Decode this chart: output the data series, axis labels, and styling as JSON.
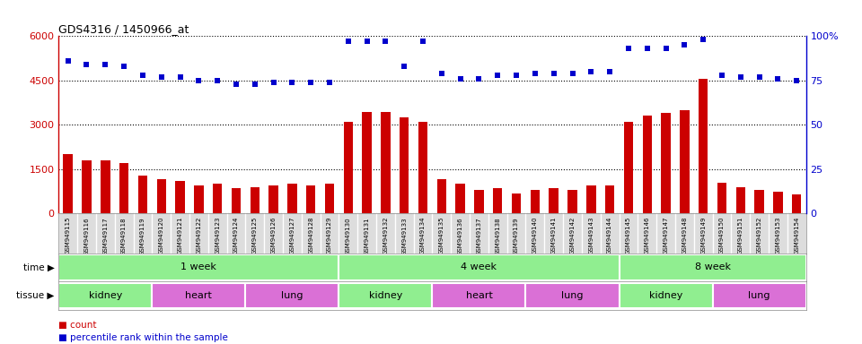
{
  "title": "GDS4316 / 1450966_at",
  "samples": [
    "GSM949115",
    "GSM949116",
    "GSM949117",
    "GSM949118",
    "GSM949119",
    "GSM949120",
    "GSM949121",
    "GSM949122",
    "GSM949123",
    "GSM949124",
    "GSM949125",
    "GSM949126",
    "GSM949127",
    "GSM949128",
    "GSM949129",
    "GSM949130",
    "GSM949131",
    "GSM949132",
    "GSM949133",
    "GSM949134",
    "GSM949135",
    "GSM949136",
    "GSM949137",
    "GSM949138",
    "GSM949139",
    "GSM949140",
    "GSM949141",
    "GSM949142",
    "GSM949143",
    "GSM949144",
    "GSM949145",
    "GSM949146",
    "GSM949147",
    "GSM949148",
    "GSM949149",
    "GSM949150",
    "GSM949151",
    "GSM949152",
    "GSM949153",
    "GSM949154"
  ],
  "counts": [
    2000,
    1800,
    1800,
    1700,
    1300,
    1150,
    1100,
    950,
    1000,
    850,
    900,
    950,
    1000,
    950,
    1000,
    3100,
    3450,
    3450,
    3250,
    3100,
    1150,
    1000,
    800,
    850,
    680,
    800,
    850,
    800,
    950,
    950,
    3100,
    3300,
    3400,
    3500,
    4550,
    1050,
    900,
    800,
    750,
    650
  ],
  "percentile": [
    86,
    84,
    84,
    83,
    78,
    77,
    77,
    75,
    75,
    73,
    73,
    74,
    74,
    74,
    74,
    97,
    97,
    97,
    83,
    97,
    79,
    76,
    76,
    78,
    78,
    79,
    79,
    79,
    80,
    80,
    93,
    93,
    93,
    95,
    98,
    78,
    77,
    77,
    76,
    75
  ],
  "ylim_left": [
    0,
    6000
  ],
  "ylim_right": [
    0,
    100
  ],
  "yticks_left": [
    0,
    1500,
    3000,
    4500,
    6000
  ],
  "yticks_right": [
    0,
    25,
    50,
    75,
    100
  ],
  "bar_color": "#CC0000",
  "dot_color": "#0000CC",
  "time_groups": [
    {
      "label": "1 week",
      "start": 0,
      "end": 15,
      "color": "#90EE90"
    },
    {
      "label": "4 week",
      "start": 15,
      "end": 30,
      "color": "#90EE90"
    },
    {
      "label": "8 week",
      "start": 30,
      "end": 40,
      "color": "#90EE90"
    }
  ],
  "tissue_groups": [
    {
      "label": "kidney",
      "start": 0,
      "end": 5,
      "color": "#90EE90"
    },
    {
      "label": "heart",
      "start": 5,
      "end": 10,
      "color": "#DA70D6"
    },
    {
      "label": "lung",
      "start": 10,
      "end": 15,
      "color": "#DA70D6"
    },
    {
      "label": "kidney",
      "start": 15,
      "end": 20,
      "color": "#90EE90"
    },
    {
      "label": "heart",
      "start": 20,
      "end": 25,
      "color": "#DA70D6"
    },
    {
      "label": "lung",
      "start": 25,
      "end": 30,
      "color": "#DA70D6"
    },
    {
      "label": "kidney",
      "start": 30,
      "end": 35,
      "color": "#90EE90"
    },
    {
      "label": "lung",
      "start": 35,
      "end": 40,
      "color": "#DA70D6"
    }
  ],
  "legend_items": [
    {
      "label": "count",
      "color": "#CC0000"
    },
    {
      "label": "percentile rank within the sample",
      "color": "#0000CC"
    }
  ],
  "background_color": "#FFFFFF",
  "tick_label_color_left": "#CC0000",
  "tick_label_color_right": "#0000CC",
  "xtick_bg": "#DDDDDD"
}
